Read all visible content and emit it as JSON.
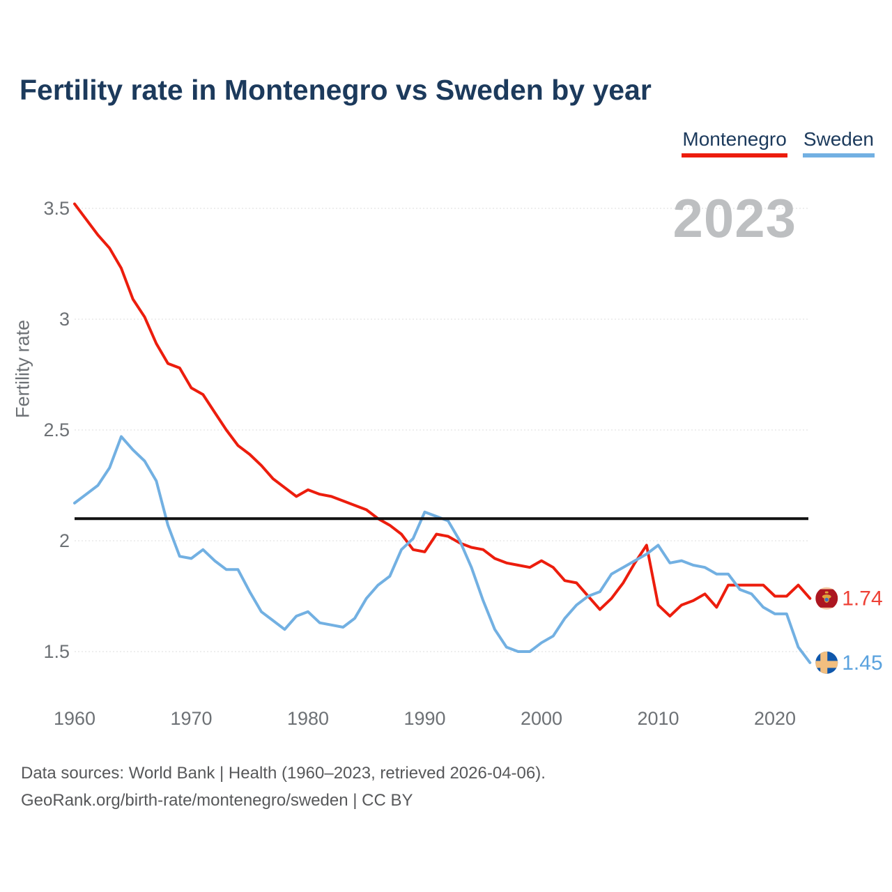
{
  "title": "Fertility rate in Montenegro vs Sweden by year",
  "watermark": "2023",
  "ylabel": "Fertility rate",
  "legend": [
    {
      "label": "Montenegro",
      "color": "#EC1D0D"
    },
    {
      "label": "Sweden",
      "color": "#72B0E2"
    }
  ],
  "footer": {
    "line1": "Data sources: World Bank | Health (1960–2023, retrieved 2026-04-06).",
    "line2": "GeoRank.org/birth-rate/montenegro/sweden | CC BY"
  },
  "chart_data": {
    "type": "line",
    "title": "Fertility rate in Montenegro vs Sweden by year",
    "xlabel": "",
    "ylabel": "Fertility rate",
    "years": {
      "start": 1960,
      "end": 2023
    },
    "xticks": [
      1960,
      1970,
      1980,
      1990,
      2000,
      2010,
      2020
    ],
    "yticks": [
      1.5,
      2,
      2.5,
      3,
      3.5
    ],
    "ylim": [
      1.3,
      3.6
    ],
    "grid": "horizontal-dotted",
    "legend_position": "top-right",
    "reference_line": {
      "value": 2.1,
      "color": "#111111"
    },
    "series": [
      {
        "name": "Montenegro",
        "color": "#EC1D0D",
        "label_color": "#EE4136",
        "end_label": "1.74",
        "flag": "montenegro-flag",
        "values": [
          3.52,
          3.45,
          3.38,
          3.32,
          3.23,
          3.09,
          3.01,
          2.89,
          2.8,
          2.78,
          2.69,
          2.66,
          2.58,
          2.5,
          2.43,
          2.39,
          2.34,
          2.28,
          2.24,
          2.2,
          2.23,
          2.21,
          2.2,
          2.18,
          2.16,
          2.14,
          2.1,
          2.07,
          2.03,
          1.96,
          1.95,
          2.03,
          2.02,
          1.99,
          1.97,
          1.96,
          1.92,
          1.9,
          1.89,
          1.88,
          1.91,
          1.88,
          1.82,
          1.81,
          1.75,
          1.69,
          1.74,
          1.81,
          1.9,
          1.98,
          1.71,
          1.66,
          1.71,
          1.73,
          1.76,
          1.7,
          1.8,
          1.8,
          1.8,
          1.8,
          1.75,
          1.75,
          1.8,
          1.74
        ]
      },
      {
        "name": "Sweden",
        "color": "#72B0E2",
        "label_color": "#5AA2DE",
        "end_label": "1.45",
        "flag": "sweden-flag",
        "values": [
          2.17,
          2.21,
          2.25,
          2.33,
          2.47,
          2.41,
          2.36,
          2.27,
          2.07,
          1.93,
          1.92,
          1.96,
          1.91,
          1.87,
          1.87,
          1.77,
          1.68,
          1.64,
          1.6,
          1.66,
          1.68,
          1.63,
          1.62,
          1.61,
          1.65,
          1.74,
          1.8,
          1.84,
          1.96,
          2.01,
          2.13,
          2.11,
          2.09,
          2.0,
          1.88,
          1.73,
          1.6,
          1.52,
          1.5,
          1.5,
          1.54,
          1.57,
          1.65,
          1.71,
          1.75,
          1.77,
          1.85,
          1.88,
          1.91,
          1.94,
          1.98,
          1.9,
          1.91,
          1.89,
          1.88,
          1.85,
          1.85,
          1.78,
          1.76,
          1.7,
          1.67,
          1.67,
          1.52,
          1.45
        ]
      }
    ]
  }
}
